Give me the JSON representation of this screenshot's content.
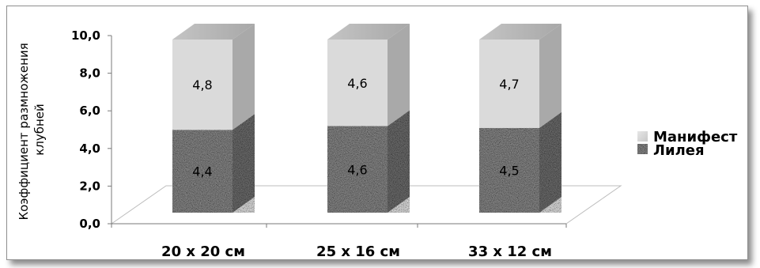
{
  "chart_data": {
    "type": "bar",
    "stacked": true,
    "style": "3d",
    "categories": [
      "20 х 20 см",
      "25 х 16 см",
      "33 х 12 см"
    ],
    "series": [
      {
        "name": "Лилея",
        "values": [
          4.4,
          4.6,
          4.5
        ],
        "labels": [
          "4,4",
          "4,6",
          "4,5"
        ],
        "color": "#9a9a9a"
      },
      {
        "name": "Манифест",
        "values": [
          4.8,
          4.6,
          4.7
        ],
        "labels": [
          "4,8",
          "4,6",
          "4,7"
        ],
        "color": "#dadada"
      }
    ],
    "ylabel_lines": [
      "Коэффициент размножения",
      "клубней"
    ],
    "ylim": [
      0,
      10
    ],
    "yticks": [
      0,
      2,
      4,
      6,
      8,
      10
    ],
    "ytick_labels": [
      "0,0",
      "2,0",
      "4,0",
      "6,0",
      "8,0",
      "10,0"
    ],
    "grid": false,
    "legend_position": "right"
  }
}
